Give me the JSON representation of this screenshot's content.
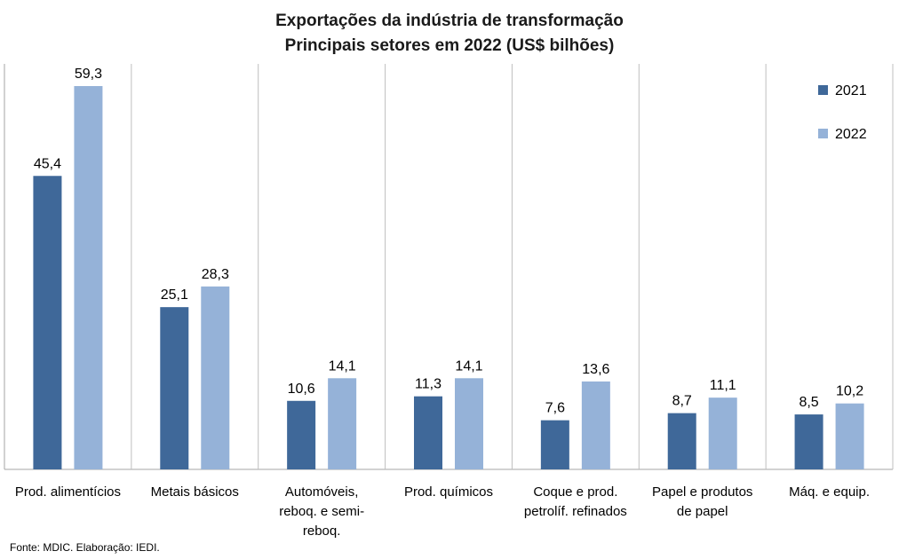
{
  "chart_data": {
    "type": "bar",
    "title": "Exportações da indústria de transformação",
    "subtitle": "Principais setores em 2022 (US$ bilhões)",
    "categories": [
      [
        "Prod. alimentícios"
      ],
      [
        "Metais básicos"
      ],
      [
        "Automóveis,",
        "reboq. e semi-",
        "reboq."
      ],
      [
        "Prod. químicos"
      ],
      [
        "Coque e prod.",
        "petrolíf. refinados"
      ],
      [
        "Papel e produtos",
        "de papel"
      ],
      [
        "Máq. e equip."
      ]
    ],
    "series": [
      {
        "name": "2021",
        "color": "#3f6899",
        "values": [
          45.4,
          25.1,
          10.6,
          11.3,
          7.6,
          8.7,
          8.5
        ],
        "labels": [
          "45,4",
          "25,1",
          "10,6",
          "11,3",
          "7,6",
          "8,7",
          "8,5"
        ]
      },
      {
        "name": "2022",
        "color": "#95b2d8",
        "values": [
          59.3,
          28.3,
          14.1,
          14.1,
          13.6,
          11.1,
          10.2
        ],
        "labels": [
          "59,3",
          "28,3",
          "14,1",
          "14,1",
          "13,6",
          "11,1",
          "10,2"
        ]
      }
    ],
    "ylim": [
      0,
      63
    ],
    "legend_position": "top-right",
    "grid": "vertical category separators"
  },
  "source": "Fonte: MDIC. Elaboração: IEDI."
}
